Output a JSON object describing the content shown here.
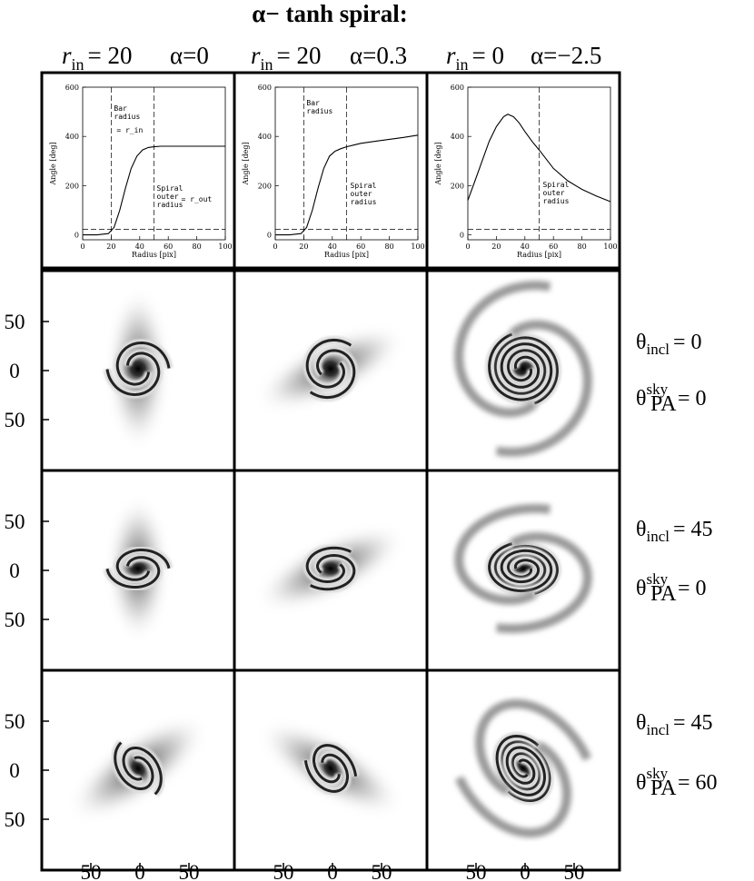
{
  "figure": {
    "title": "α− tanh spiral:",
    "columns": [
      {
        "r_sym": "r",
        "r_sub": "in",
        "r_val": "= 20",
        "alpha": "α=0"
      },
      {
        "r_sym": "r",
        "r_sub": "in",
        "r_val": "= 20",
        "alpha": "α=0.3"
      },
      {
        "r_sym": "r",
        "r_sub": "in",
        "r_val": "= 0",
        "alpha": "α=−2.5"
      }
    ],
    "rows": [
      {
        "incl_label": "θ",
        "incl_sub": "incl",
        "incl_val": "= 0",
        "pa_label": "θ",
        "pa_sup": "sky",
        "pa_sub": "PA",
        "pa_val": "= 0"
      },
      {
        "incl_label": "θ",
        "incl_sub": "incl",
        "incl_val": "= 45",
        "pa_label": "θ",
        "pa_sup": "sky",
        "pa_sub": "PA",
        "pa_val": "= 0"
      },
      {
        "incl_label": "θ",
        "incl_sub": "incl",
        "incl_val": "= 45",
        "pa_label": "θ",
        "pa_sup": "sky",
        "pa_sub": "PA",
        "pa_val": "= 60"
      }
    ],
    "image_y_ticks": [
      "50",
      "0",
      "50"
    ],
    "image_x_ticks": [
      "50",
      "0",
      "50"
    ]
  },
  "chart_data": [
    {
      "type": "line",
      "xlabel": "Radius [pix]",
      "ylabel": "Angle [deg]",
      "xlim": [
        0,
        100
      ],
      "ylim": [
        -20,
        600
      ],
      "x_ticks": [
        "0",
        "20",
        "40",
        "60",
        "80",
        "100"
      ],
      "y_ticks": [
        "0",
        "200",
        "400",
        "600"
      ],
      "annotations": [
        "Bar radius",
        "= r_in",
        "Spiral outer radius",
        "= r_out"
      ],
      "vlines": [
        20,
        50
      ],
      "hline": 22,
      "series": [
        {
          "x": [
            0,
            10,
            18,
            22,
            26,
            30,
            34,
            38,
            42,
            46,
            50,
            55,
            60,
            70,
            80,
            90,
            100
          ],
          "y": [
            0,
            0,
            5,
            30,
            100,
            190,
            270,
            320,
            345,
            355,
            358,
            360,
            360,
            360,
            360,
            360,
            360
          ]
        }
      ]
    },
    {
      "type": "line",
      "xlabel": "Radius [pix]",
      "ylabel": "Angle [deg]",
      "xlim": [
        0,
        100
      ],
      "ylim": [
        -20,
        600
      ],
      "x_ticks": [
        "0",
        "20",
        "40",
        "60",
        "80",
        "100"
      ],
      "y_ticks": [
        "0",
        "200",
        "400",
        "600"
      ],
      "annotations": [
        "Bar radius",
        "Spiral outer radius"
      ],
      "vlines": [
        20,
        50
      ],
      "hline": 22,
      "series": [
        {
          "x": [
            0,
            10,
            18,
            22,
            26,
            30,
            34,
            38,
            42,
            46,
            50,
            55,
            60,
            70,
            80,
            90,
            100
          ],
          "y": [
            0,
            0,
            5,
            30,
            100,
            190,
            270,
            320,
            340,
            350,
            358,
            365,
            372,
            380,
            388,
            396,
            405
          ]
        }
      ]
    },
    {
      "type": "line",
      "xlabel": "Radius [pix]",
      "ylabel": "Angle [deg]",
      "xlim": [
        0,
        100
      ],
      "ylim": [
        -20,
        600
      ],
      "x_ticks": [
        "0",
        "20",
        "40",
        "60",
        "80",
        "100"
      ],
      "y_ticks": [
        "0",
        "200",
        "400",
        "600"
      ],
      "annotations": [
        "Spiral outer radius"
      ],
      "vlines": [
        50
      ],
      "hline": 22,
      "series": [
        {
          "x": [
            0,
            5,
            10,
            15,
            20,
            25,
            28,
            32,
            36,
            40,
            45,
            50,
            60,
            70,
            80,
            90,
            100
          ],
          "y": [
            140,
            220,
            300,
            380,
            440,
            480,
            490,
            480,
            455,
            420,
            380,
            345,
            270,
            220,
            185,
            158,
            135
          ]
        }
      ]
    }
  ]
}
